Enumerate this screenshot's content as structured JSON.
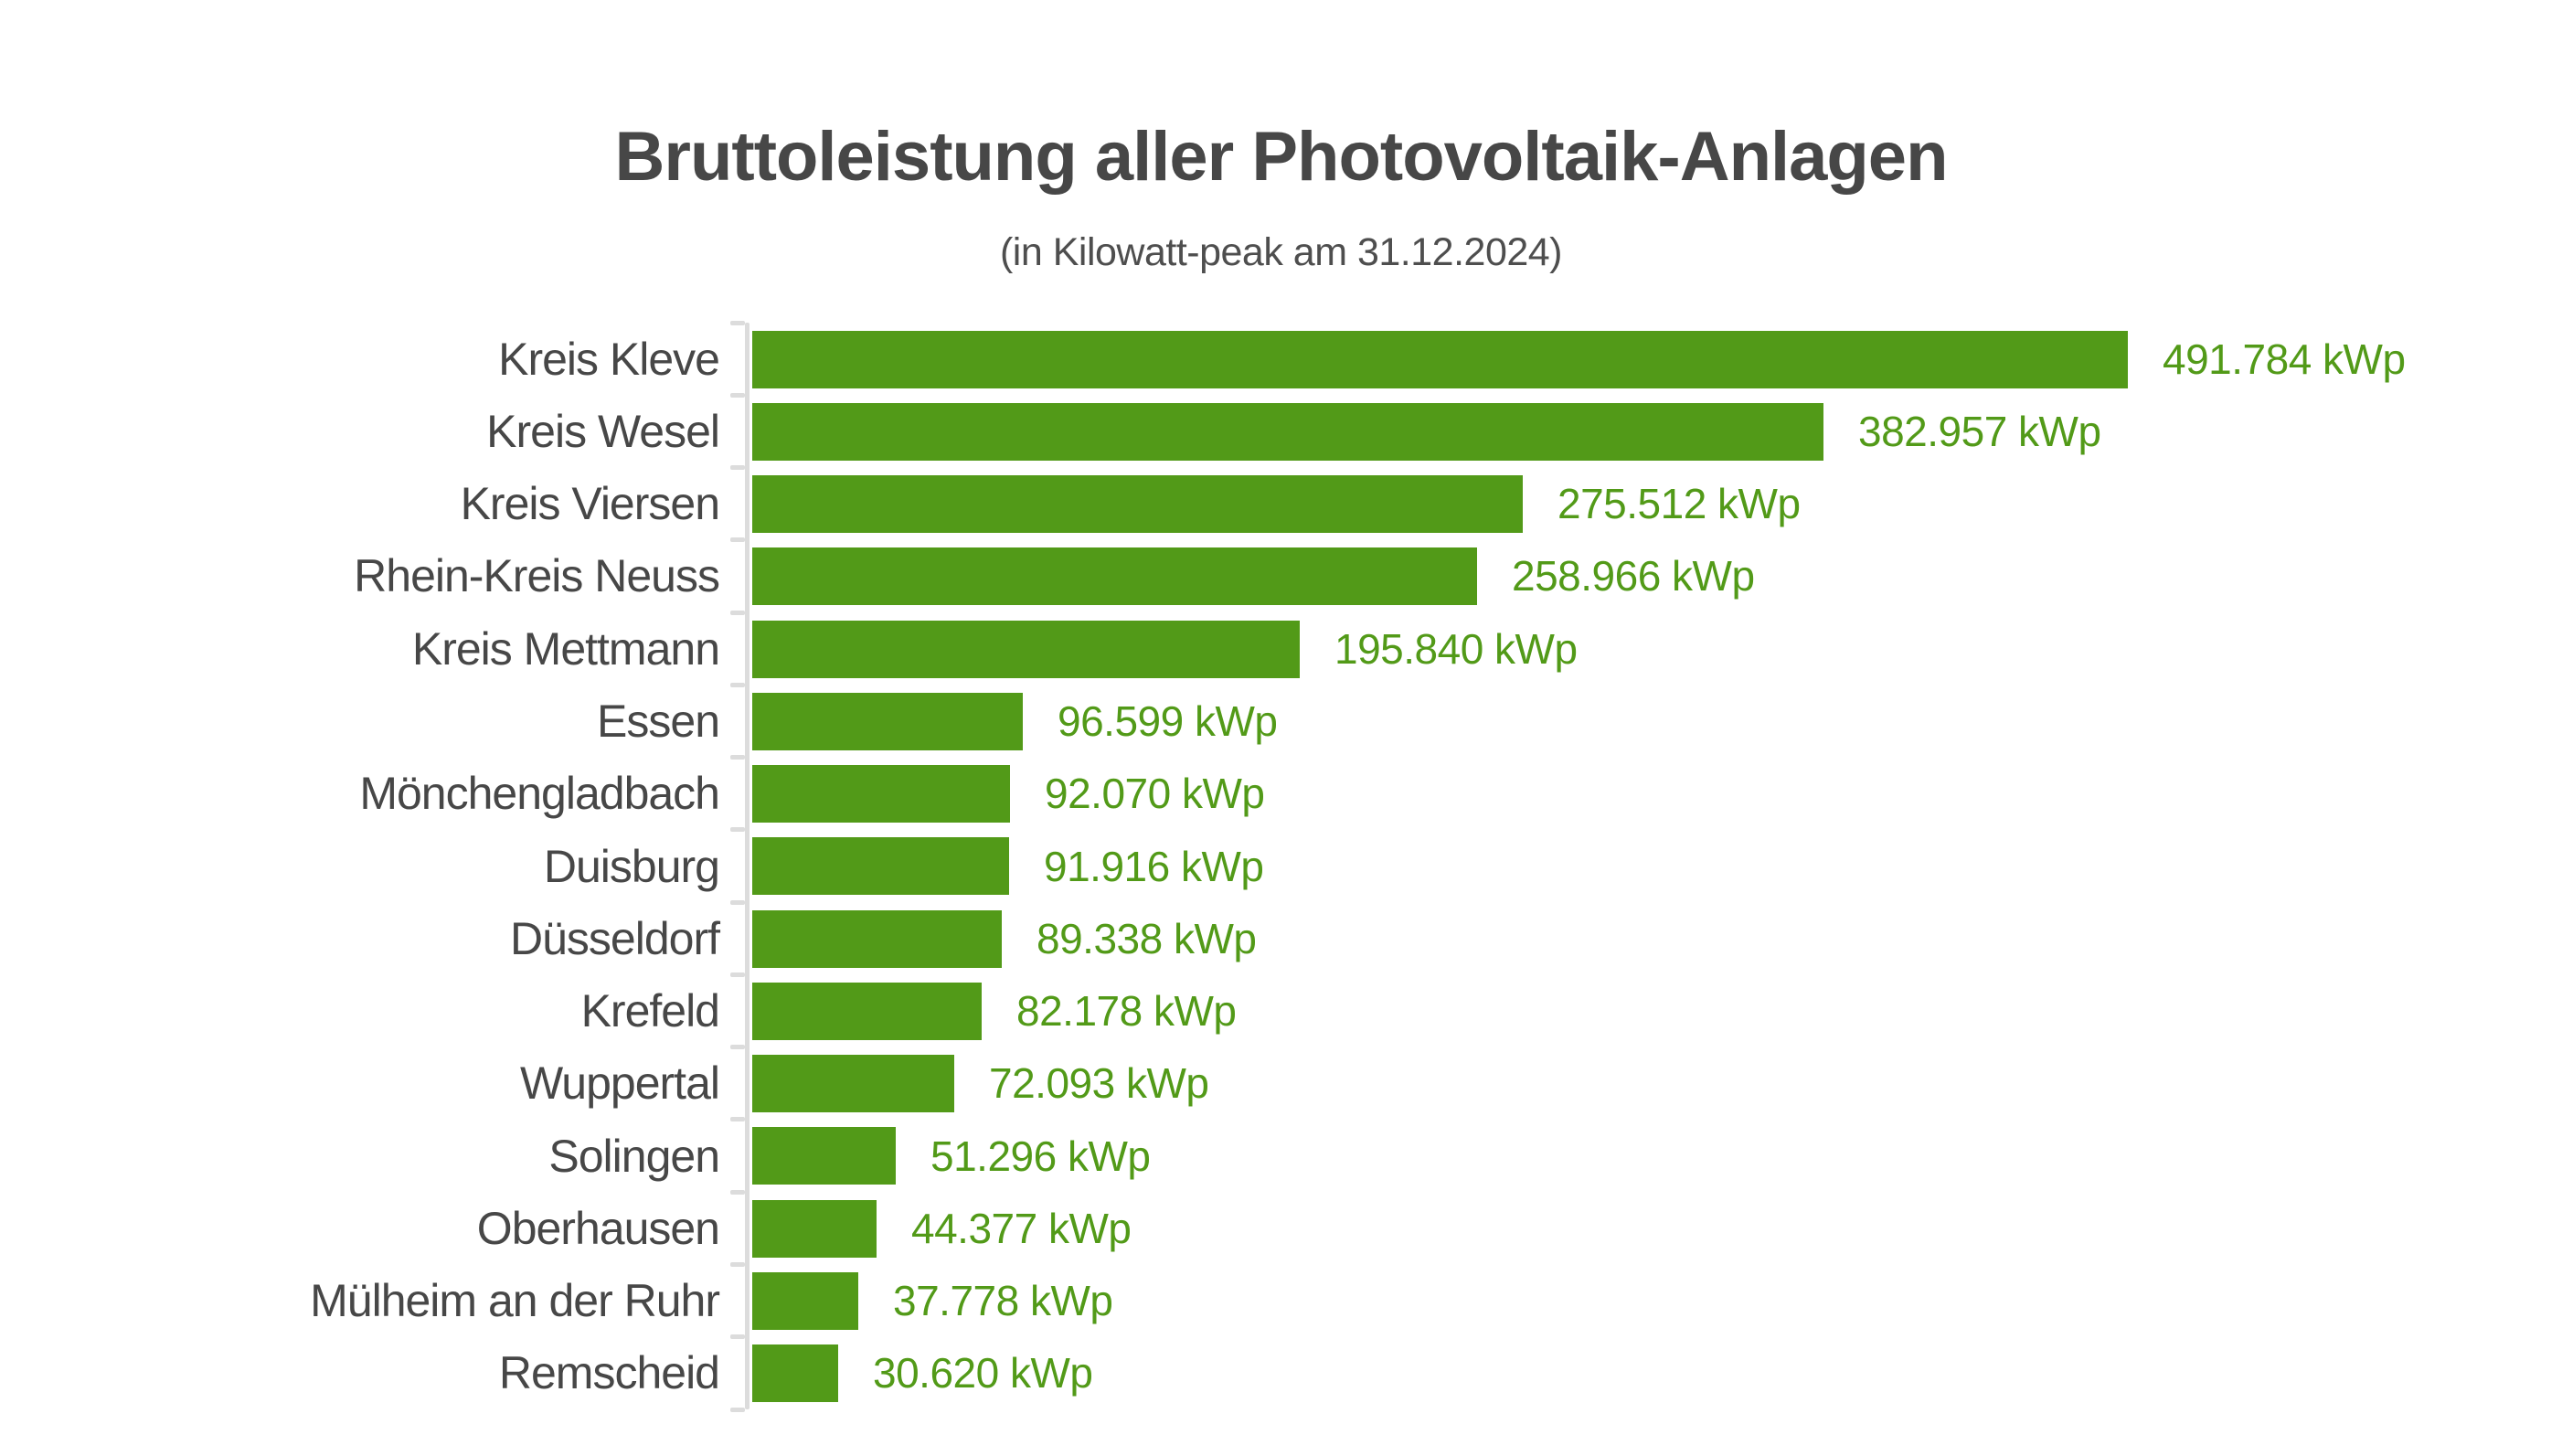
{
  "chart_data": {
    "type": "bar",
    "orientation": "horizontal",
    "title": "Bruttoleistung aller Photovoltaik-Anlagen",
    "subtitle": "(in Kilowatt-peak am 31.12.2024)",
    "unit": "kWp",
    "categories": [
      "Kreis Kleve",
      "Kreis Wesel",
      "Kreis Viersen",
      "Rhein-Kreis Neuss",
      "Kreis Mettmann",
      "Essen",
      "Mönchengladbach",
      "Duisburg",
      "Düsseldorf",
      "Krefeld",
      "Wuppertal",
      "Solingen",
      "Oberhausen",
      "Mülheim an der Ruhr",
      "Remscheid"
    ],
    "values": [
      491784,
      382957,
      275512,
      258966,
      195840,
      96599,
      92070,
      91916,
      89338,
      82178,
      72093,
      51296,
      44377,
      37778,
      30620
    ],
    "value_labels": [
      "491.784 kWp",
      "382.957 kWp",
      "275.512 kWp",
      "258.966 kWp",
      "195.840 kWp",
      "96.599 kWp",
      "92.070 kWp",
      "91.916 kWp",
      "89.338 kWp",
      "82.178 kWp",
      "72.093 kWp",
      "51.296 kWp",
      "44.377 kWp",
      "37.778 kWp",
      "30.620 kWp"
    ],
    "xlim": [
      0,
      491784
    ],
    "grid": false,
    "legend": false,
    "value_labels_position": "right-of-bar",
    "colors": {
      "bar": "#529a18",
      "value_text": "#529a18",
      "category_text": "#474747",
      "title_text": "#474747",
      "axis": "#dcdcdc"
    }
  }
}
